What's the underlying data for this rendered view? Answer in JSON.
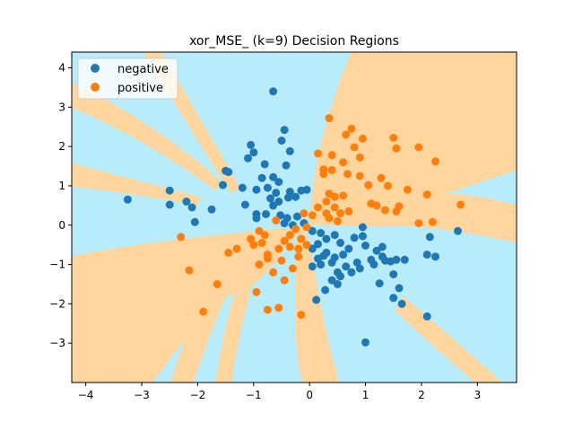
{
  "chart_data": {
    "type": "scatter",
    "title": "xor_MSE_ (k=9) Decision Regions",
    "xlabel": "",
    "ylabel": "",
    "xlim": [
      -4.25,
      3.7
    ],
    "ylim": [
      -4.0,
      4.4
    ],
    "x_ticks": [
      -4,
      -3,
      -2,
      -1,
      0,
      1,
      2,
      3
    ],
    "y_ticks": [
      -3,
      -2,
      -1,
      0,
      1,
      2,
      3,
      4
    ],
    "grid": false,
    "legend_position": "top-left",
    "region_colors": {
      "negative": "#b8ecfa",
      "positive": "#fed69d"
    },
    "series": [
      {
        "name": "negative",
        "color": "#1f77b4",
        "points": [
          [
            -0.65,
            3.4
          ],
          [
            -0.45,
            2.42
          ],
          [
            -1.05,
            2.04
          ],
          [
            -1.0,
            1.85
          ],
          [
            -0.5,
            2.15
          ],
          [
            -1.1,
            1.7
          ],
          [
            -0.8,
            1.55
          ],
          [
            -0.35,
            1.88
          ],
          [
            -0.42,
            1.52
          ],
          [
            -1.5,
            1.38
          ],
          [
            -1.45,
            1.35
          ],
          [
            -0.65,
            1.22
          ],
          [
            -0.85,
            1.2
          ],
          [
            -0.55,
            1.1
          ],
          [
            -1.55,
            1.02
          ],
          [
            -1.2,
            0.95
          ],
          [
            -0.75,
            0.95
          ],
          [
            -0.95,
            0.9
          ],
          [
            -0.6,
            0.82
          ],
          [
            -0.35,
            0.85
          ],
          [
            -0.15,
            0.88
          ],
          [
            -0.05,
            0.9
          ],
          [
            -0.25,
            0.72
          ],
          [
            -0.38,
            0.7
          ],
          [
            -0.55,
            0.6
          ],
          [
            -0.7,
            0.68
          ],
          [
            -0.65,
            0.5
          ],
          [
            -2.5,
            0.88
          ],
          [
            -2.2,
            0.6
          ],
          [
            -2.1,
            0.45
          ],
          [
            -2.5,
            0.52
          ],
          [
            -1.75,
            0.4
          ],
          [
            -1.15,
            0.52
          ],
          [
            -3.25,
            0.65
          ],
          [
            -2.05,
            0.08
          ],
          [
            -0.95,
            0.28
          ],
          [
            -0.95,
            0.18
          ],
          [
            -0.78,
            0.28
          ],
          [
            -0.52,
            0.25
          ],
          [
            -0.4,
            0.18
          ],
          [
            -0.22,
            0.22
          ],
          [
            -0.45,
            0.05
          ],
          [
            -0.3,
            0.0
          ],
          [
            -0.1,
            0.05
          ],
          [
            0.05,
            -0.15
          ],
          [
            0.2,
            -0.2
          ],
          [
            0.3,
            -0.35
          ],
          [
            0.15,
            -0.48
          ],
          [
            0.05,
            -0.6
          ],
          [
            0.3,
            -0.7
          ],
          [
            0.25,
            -0.78
          ],
          [
            0.15,
            -0.85
          ],
          [
            0.45,
            -0.82
          ],
          [
            0.4,
            -0.95
          ],
          [
            0.2,
            -1.0
          ],
          [
            0.05,
            -1.05
          ],
          [
            0.5,
            -1.2
          ],
          [
            0.4,
            -1.4
          ],
          [
            0.55,
            -1.3
          ],
          [
            0.65,
            -1.05
          ],
          [
            0.6,
            -0.75
          ],
          [
            0.7,
            -0.6
          ],
          [
            0.55,
            -0.45
          ],
          [
            0.45,
            -0.25
          ],
          [
            0.8,
            -0.32
          ],
          [
            0.95,
            -0.28
          ],
          [
            0.95,
            -0.05
          ],
          [
            1.0,
            -0.52
          ],
          [
            1.2,
            -0.65
          ],
          [
            1.3,
            -0.55
          ],
          [
            1.1,
            -0.88
          ],
          [
            1.15,
            -1.0
          ],
          [
            0.85,
            -0.95
          ],
          [
            0.9,
            -1.1
          ],
          [
            0.75,
            -1.2
          ],
          [
            1.35,
            -0.9
          ],
          [
            1.45,
            -0.92
          ],
          [
            1.55,
            -0.88
          ],
          [
            1.7,
            -0.88
          ],
          [
            1.5,
            -1.25
          ],
          [
            1.25,
            -1.48
          ],
          [
            1.6,
            -1.6
          ],
          [
            1.5,
            -1.85
          ],
          [
            1.65,
            -2.0
          ],
          [
            2.1,
            -2.32
          ],
          [
            2.1,
            -0.75
          ],
          [
            2.25,
            -0.8
          ],
          [
            2.15,
            -0.3
          ],
          [
            2.65,
            -0.15
          ],
          [
            1.0,
            -2.98
          ],
          [
            0.12,
            -1.9
          ],
          [
            0.28,
            -1.65
          ],
          [
            0.5,
            -1.5
          ],
          [
            1.3,
            -0.8
          ]
        ]
      },
      {
        "name": "positive",
        "color": "#ff7f0e",
        "points": [
          [
            0.35,
            2.72
          ],
          [
            0.75,
            2.45
          ],
          [
            0.65,
            2.3
          ],
          [
            0.95,
            2.2
          ],
          [
            0.8,
            1.98
          ],
          [
            1.5,
            2.22
          ],
          [
            1.55,
            1.95
          ],
          [
            1.95,
            1.98
          ],
          [
            2.25,
            1.62
          ],
          [
            0.15,
            1.82
          ],
          [
            0.4,
            1.78
          ],
          [
            0.9,
            1.72
          ],
          [
            0.6,
            1.6
          ],
          [
            0.25,
            1.42
          ],
          [
            0.25,
            1.3
          ],
          [
            0.4,
            1.4
          ],
          [
            0.68,
            1.3
          ],
          [
            0.9,
            1.25
          ],
          [
            1.05,
            1.02
          ],
          [
            1.28,
            1.2
          ],
          [
            1.4,
            1.0
          ],
          [
            1.75,
            0.9
          ],
          [
            2.1,
            0.78
          ],
          [
            0.35,
            0.8
          ],
          [
            0.45,
            0.72
          ],
          [
            0.6,
            0.75
          ],
          [
            0.3,
            0.6
          ],
          [
            0.15,
            0.45
          ],
          [
            0.3,
            0.3
          ],
          [
            0.45,
            0.45
          ],
          [
            0.55,
            0.3
          ],
          [
            0.7,
            0.35
          ],
          [
            0.35,
            0.18
          ],
          [
            0.5,
            0.1
          ],
          [
            0.05,
            0.25
          ],
          [
            -0.1,
            0.3
          ],
          [
            1.1,
            0.55
          ],
          [
            1.2,
            0.5
          ],
          [
            1.35,
            0.38
          ],
          [
            1.6,
            0.48
          ],
          [
            1.55,
            0.35
          ],
          [
            1.95,
            0.05
          ],
          [
            2.2,
            0.08
          ],
          [
            2.7,
            0.52
          ],
          [
            -0.25,
            -0.1
          ],
          [
            -0.35,
            -0.25
          ],
          [
            -0.45,
            -0.4
          ],
          [
            -0.15,
            -0.35
          ],
          [
            -0.05,
            -0.5
          ],
          [
            -0.2,
            -0.6
          ],
          [
            -0.35,
            -0.55
          ],
          [
            -0.55,
            -0.6
          ],
          [
            -0.75,
            -0.75
          ],
          [
            -0.85,
            -0.45
          ],
          [
            -1.0,
            -0.5
          ],
          [
            -1.05,
            -0.35
          ],
          [
            -1.3,
            -0.6
          ],
          [
            -1.45,
            -0.7
          ],
          [
            -2.3,
            -0.3
          ],
          [
            -2.15,
            -1.15
          ],
          [
            -0.9,
            -1.0
          ],
          [
            -0.75,
            -0.85
          ],
          [
            -0.5,
            -0.9
          ],
          [
            -0.3,
            -1.1
          ],
          [
            -0.45,
            -1.4
          ],
          [
            -0.65,
            -1.2
          ],
          [
            -0.95,
            -1.7
          ],
          [
            -0.2,
            -0.8
          ],
          [
            -1.65,
            -1.5
          ],
          [
            -0.75,
            -2.15
          ],
          [
            -0.55,
            -2.1
          ],
          [
            -1.9,
            -2.2
          ],
          [
            -0.15,
            -2.28
          ],
          [
            -0.9,
            -0.15
          ],
          [
            -0.6,
            0.12
          ],
          [
            -0.8,
            -0.25
          ],
          [
            -0.05,
            -0.05
          ]
        ]
      }
    ]
  }
}
